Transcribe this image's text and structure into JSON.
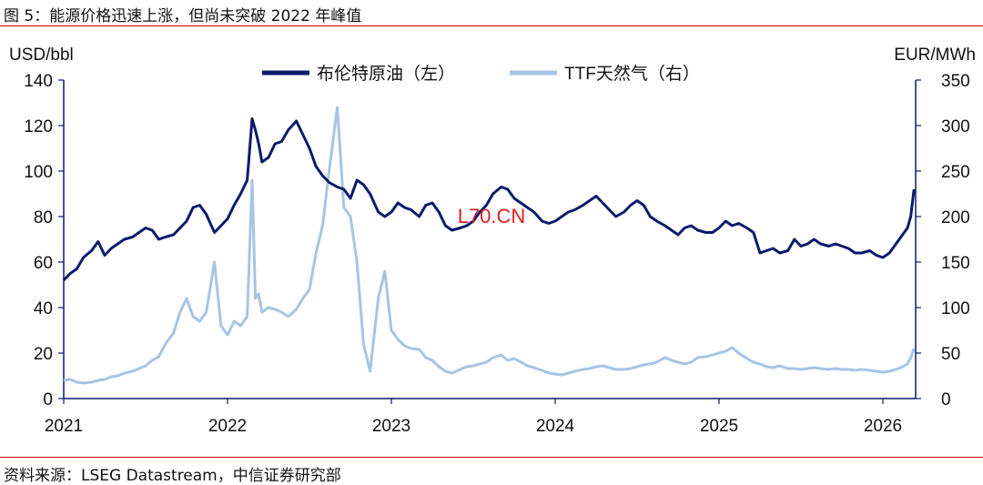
{
  "header": {
    "title": "图 5：能源价格迅速上涨，但尚未突破 2022 年峰值"
  },
  "footer": {
    "source": "资料来源：LSEG Datastream，中信证券研究部"
  },
  "watermark": "L70.CN",
  "colors": {
    "brent": "#0c1a6b",
    "ttf": "#a8c4e4",
    "rule": "#c00000",
    "watermark": "#e02020"
  },
  "chart_data": {
    "type": "line",
    "xlabel": "",
    "y_left_label": "USD/bbl",
    "y_right_label": "EUR/MWh",
    "y_left_lim": [
      0,
      140
    ],
    "y_right_lim": [
      0,
      350
    ],
    "y_left_ticks": [
      "0",
      "20",
      "40",
      "60",
      "80",
      "100",
      "120",
      "140"
    ],
    "y_right_ticks": [
      "0",
      "50",
      "100",
      "150",
      "200",
      "250",
      "300",
      "350"
    ],
    "x_ticks": [
      "2021",
      "2022",
      "2023",
      "2024",
      "2025",
      "2026"
    ],
    "x_lim": [
      2021.0,
      2026.2
    ],
    "legend_position": "top-center",
    "grid": false,
    "series": [
      {
        "name": "布伦特原油（左）",
        "axis": "left",
        "x": [
          2021.0,
          2021.04,
          2021.08,
          2021.12,
          2021.17,
          2021.21,
          2021.25,
          2021.29,
          2021.33,
          2021.37,
          2021.42,
          2021.46,
          2021.5,
          2021.54,
          2021.58,
          2021.62,
          2021.67,
          2021.71,
          2021.75,
          2021.79,
          2021.83,
          2021.87,
          2021.92,
          2021.96,
          2022.0,
          2022.04,
          2022.08,
          2022.12,
          2022.15,
          2022.17,
          2022.19,
          2022.21,
          2022.25,
          2022.29,
          2022.33,
          2022.37,
          2022.42,
          2022.46,
          2022.5,
          2022.54,
          2022.58,
          2022.62,
          2022.67,
          2022.71,
          2022.75,
          2022.79,
          2022.83,
          2022.87,
          2022.92,
          2022.96,
          2023.0,
          2023.04,
          2023.08,
          2023.12,
          2023.17,
          2023.21,
          2023.25,
          2023.29,
          2023.33,
          2023.37,
          2023.42,
          2023.46,
          2023.5,
          2023.54,
          2023.58,
          2023.62,
          2023.67,
          2023.71,
          2023.75,
          2023.79,
          2023.83,
          2023.87,
          2023.92,
          2023.96,
          2024.0,
          2024.04,
          2024.08,
          2024.12,
          2024.17,
          2024.21,
          2024.25,
          2024.29,
          2024.33,
          2024.37,
          2024.42,
          2024.46,
          2024.5,
          2024.54,
          2024.58,
          2024.62,
          2024.67,
          2024.71,
          2024.75,
          2024.79,
          2024.83,
          2024.87,
          2024.92,
          2024.96,
          2025.0,
          2025.04,
          2025.08,
          2025.12,
          2025.17,
          2025.21,
          2025.25,
          2025.29,
          2025.33,
          2025.37,
          2025.42,
          2025.46,
          2025.5,
          2025.54,
          2025.58,
          2025.62,
          2025.67,
          2025.71,
          2025.75,
          2025.79,
          2025.83,
          2025.87,
          2025.92,
          2025.96,
          2026.0,
          2026.04,
          2026.08,
          2026.12,
          2026.15,
          2026.17,
          2026.19
        ],
        "values": [
          52,
          55,
          57,
          62,
          65,
          69,
          63,
          66,
          68,
          70,
          71,
          73,
          75,
          74,
          70,
          71,
          72,
          75,
          78,
          84,
          85,
          81,
          73,
          76,
          79,
          85,
          90,
          96,
          123,
          118,
          112,
          104,
          106,
          112,
          113,
          118,
          122,
          116,
          110,
          102,
          98,
          95,
          93,
          92,
          88,
          96,
          94,
          90,
          82,
          80,
          82,
          86,
          84,
          83,
          80,
          85,
          86,
          82,
          76,
          74,
          75,
          76,
          78,
          82,
          85,
          90,
          93,
          92,
          88,
          86,
          84,
          82,
          78,
          77,
          78,
          80,
          82,
          83,
          85,
          87,
          89,
          86,
          83,
          80,
          82,
          85,
          87,
          85,
          80,
          78,
          76,
          74,
          72,
          75,
          76,
          74,
          73,
          73,
          75,
          78,
          76,
          77,
          75,
          73,
          64,
          65,
          66,
          64,
          65,
          70,
          67,
          68,
          70,
          68,
          67,
          68,
          67,
          66,
          64,
          64,
          65,
          63,
          62,
          64,
          68,
          72,
          75,
          80,
          92
        ],
        "values_note_removed": true
      },
      {
        "name": "TTF天然气（右）",
        "axis": "right",
        "x": [
          2021.0,
          2021.04,
          2021.08,
          2021.12,
          2021.17,
          2021.21,
          2021.25,
          2021.29,
          2021.33,
          2021.37,
          2021.42,
          2021.46,
          2021.5,
          2021.54,
          2021.58,
          2021.62,
          2021.67,
          2021.71,
          2021.75,
          2021.79,
          2021.83,
          2021.87,
          2021.92,
          2021.96,
          2022.0,
          2022.04,
          2022.08,
          2022.12,
          2022.15,
          2022.17,
          2022.19,
          2022.21,
          2022.25,
          2022.29,
          2022.33,
          2022.37,
          2022.42,
          2022.46,
          2022.5,
          2022.54,
          2022.58,
          2022.62,
          2022.67,
          2022.71,
          2022.75,
          2022.79,
          2022.83,
          2022.87,
          2022.92,
          2022.96,
          2023.0,
          2023.04,
          2023.08,
          2023.12,
          2023.17,
          2023.21,
          2023.25,
          2023.29,
          2023.33,
          2023.37,
          2023.42,
          2023.46,
          2023.5,
          2023.54,
          2023.58,
          2023.62,
          2023.67,
          2023.71,
          2023.75,
          2023.79,
          2023.83,
          2023.87,
          2023.92,
          2023.96,
          2024.0,
          2024.04,
          2024.08,
          2024.12,
          2024.17,
          2024.21,
          2024.25,
          2024.29,
          2024.33,
          2024.37,
          2024.42,
          2024.46,
          2024.5,
          2024.54,
          2024.58,
          2024.62,
          2024.67,
          2024.71,
          2024.75,
          2024.79,
          2024.83,
          2024.87,
          2024.92,
          2024.96,
          2025.0,
          2025.04,
          2025.08,
          2025.12,
          2025.17,
          2025.21,
          2025.25,
          2025.29,
          2025.33,
          2025.37,
          2025.42,
          2025.46,
          2025.5,
          2025.54,
          2025.58,
          2025.62,
          2025.67,
          2025.71,
          2025.75,
          2025.79,
          2025.83,
          2025.87,
          2025.92,
          2025.96,
          2026.0,
          2026.04,
          2026.08,
          2026.12,
          2026.15,
          2026.17,
          2026.19
        ],
        "values": [
          20,
          21,
          18,
          17,
          18,
          20,
          21,
          24,
          25,
          28,
          30,
          33,
          36,
          42,
          46,
          60,
          72,
          95,
          110,
          90,
          85,
          95,
          150,
          80,
          70,
          85,
          80,
          90,
          240,
          110,
          115,
          95,
          100,
          98,
          95,
          90,
          98,
          110,
          120,
          160,
          190,
          250,
          320,
          210,
          200,
          150,
          60,
          30,
          110,
          140,
          75,
          65,
          58,
          55,
          54,
          45,
          42,
          35,
          30,
          28,
          32,
          35,
          36,
          38,
          40,
          45,
          48,
          42,
          44,
          40,
          36,
          34,
          31,
          28,
          27,
          26,
          28,
          30,
          32,
          33,
          35,
          36,
          34,
          32,
          32,
          33,
          35,
          37,
          38,
          40,
          45,
          42,
          40,
          38,
          40,
          45,
          46,
          48,
          50,
          52,
          56,
          50,
          44,
          40,
          38,
          35,
          34,
          36,
          33,
          33,
          32,
          33,
          34,
          33,
          32,
          33,
          32,
          32,
          31,
          32,
          31,
          30,
          29,
          30,
          32,
          35,
          38,
          45,
          55
        ]
      }
    ]
  }
}
